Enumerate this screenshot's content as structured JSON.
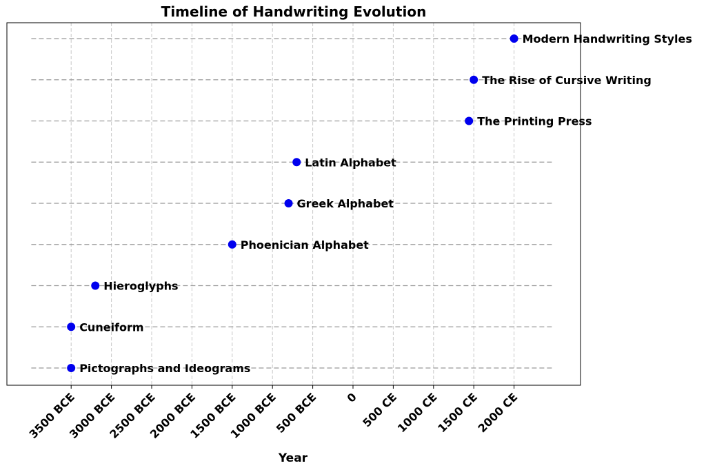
{
  "chart_data": {
    "type": "scatter",
    "title": "Timeline of Handwriting Evolution",
    "xlabel": "Year",
    "ylabel": "",
    "xlim": [
      -4000,
      2900
    ],
    "xticks": [
      {
        "value": -3500,
        "label": "3500 BCE"
      },
      {
        "value": -3000,
        "label": "3000 BCE"
      },
      {
        "value": -2500,
        "label": "2500 BCE"
      },
      {
        "value": -2000,
        "label": "2000 BCE"
      },
      {
        "value": -1500,
        "label": "1500 BCE"
      },
      {
        "value": -1000,
        "label": "1000 BCE"
      },
      {
        "value": -500,
        "label": "500 BCE"
      },
      {
        "value": 0,
        "label": "0"
      },
      {
        "value": 500,
        "label": "500 CE"
      },
      {
        "value": 1000,
        "label": "1000 CE"
      },
      {
        "value": 1500,
        "label": "1500 CE"
      },
      {
        "value": 2000,
        "label": "2000 CE"
      }
    ],
    "grid": true,
    "marker_color": "#0000ee",
    "line_color": "#999999",
    "events": [
      {
        "label": "Pictographs and Ideograms",
        "year": -3500
      },
      {
        "label": "Cuneiform",
        "year": -3500
      },
      {
        "label": "Hieroglyphs",
        "year": -3200
      },
      {
        "label": "Phoenician Alphabet",
        "year": -1500
      },
      {
        "label": "Greek Alphabet",
        "year": -800
      },
      {
        "label": "Latin Alphabet",
        "year": -700
      },
      {
        "label": "The Printing Press",
        "year": 1440
      },
      {
        "label": "The Rise of Cursive Writing",
        "year": 1500
      },
      {
        "label": "Modern Handwriting Styles",
        "year": 2000
      }
    ]
  }
}
